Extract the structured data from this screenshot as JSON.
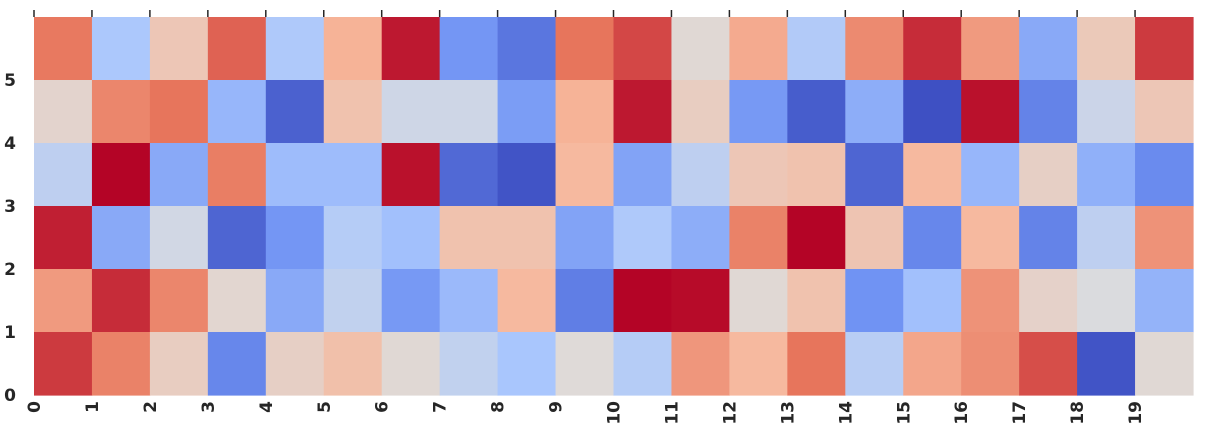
{
  "chart_data": {
    "type": "heatmap",
    "colormap": "coolwarm",
    "colormap_stops": [
      "#3b4cc0",
      "#6f92f3",
      "#aac7fd",
      "#dddcdc",
      "#f7b89c",
      "#e7745b",
      "#b40426"
    ],
    "title": "",
    "xlabel": "",
    "ylabel": "",
    "x_categories": [
      "0",
      "1",
      "2",
      "3",
      "4",
      "5",
      "6",
      "7",
      "8",
      "9",
      "10",
      "11",
      "12",
      "13",
      "14",
      "15",
      "16",
      "17",
      "18",
      "19"
    ],
    "y_categories": [
      "0",
      "1",
      "2",
      "3",
      "4",
      "5"
    ],
    "x_tick_labels": [
      "0",
      "1",
      "2",
      "3",
      "4",
      "5",
      "6",
      "7",
      "8",
      "9",
      "10",
      "11",
      "12",
      "13",
      "14",
      "15",
      "16",
      "17",
      "18",
      "19"
    ],
    "y_tick_labels": [
      "0",
      "1",
      "2",
      "3",
      "4",
      "5"
    ],
    "value_range": [
      0,
      1
    ],
    "grid": false,
    "colorbar": false,
    "rows_top_to_bottom": [
      [
        0.82,
        0.34,
        0.6,
        0.86,
        0.35,
        0.68,
        0.97,
        0.18,
        0.1,
        0.83,
        0.9,
        0.52,
        0.7,
        0.36,
        0.78,
        0.94,
        0.74,
        0.24,
        0.59,
        0.92
      ],
      [
        0.54,
        0.79,
        0.83,
        0.28,
        0.05,
        0.62,
        0.45,
        0.45,
        0.2,
        0.68,
        0.97,
        0.57,
        0.19,
        0.04,
        0.25,
        0.01,
        0.98,
        0.13,
        0.44,
        0.6
      ],
      [
        0.4,
        1.0,
        0.24,
        0.81,
        0.3,
        0.3,
        0.98,
        0.07,
        0.02,
        0.66,
        0.22,
        0.4,
        0.6,
        0.62,
        0.06,
        0.66,
        0.28,
        0.56,
        0.26,
        0.15
      ],
      [
        0.96,
        0.24,
        0.46,
        0.06,
        0.18,
        0.37,
        0.31,
        0.62,
        0.62,
        0.22,
        0.35,
        0.25,
        0.8,
        1.0,
        0.61,
        0.14,
        0.66,
        0.13,
        0.4,
        0.76
      ],
      [
        0.74,
        0.94,
        0.79,
        0.53,
        0.24,
        0.41,
        0.19,
        0.29,
        0.66,
        0.12,
        1.0,
        0.99,
        0.52,
        0.62,
        0.17,
        0.31,
        0.76,
        0.55,
        0.49,
        0.27
      ],
      [
        0.92,
        0.8,
        0.57,
        0.14,
        0.56,
        0.63,
        0.52,
        0.41,
        0.33,
        0.51,
        0.37,
        0.75,
        0.66,
        0.83,
        0.38,
        0.71,
        0.77,
        0.89,
        0.02,
        0.52
      ]
    ]
  }
}
